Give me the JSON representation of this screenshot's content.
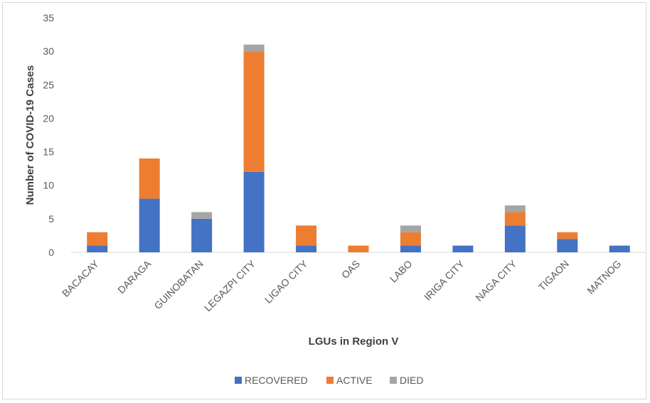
{
  "chart_data": {
    "type": "bar",
    "stacked": true,
    "categories": [
      "BACACAY",
      "DARAGA",
      "GUINOBATAN",
      "LEGAZPI CITY",
      "LIGAO CITY",
      "OAS",
      "LABO",
      "IRIGA CITY",
      "NAGA CITY",
      "TIGAON",
      "MATNOG"
    ],
    "series": [
      {
        "name": "RECOVERED",
        "color": "#4472c4",
        "values": [
          1,
          8,
          5,
          12,
          1,
          0,
          1,
          1,
          4,
          2,
          1
        ]
      },
      {
        "name": "ACTIVE",
        "color": "#ed7d31",
        "values": [
          2,
          6,
          0,
          18,
          3,
          1,
          2,
          0,
          2,
          1,
          0
        ]
      },
      {
        "name": "DIED",
        "color": "#a5a5a5",
        "values": [
          0,
          0,
          1,
          1,
          0,
          0,
          1,
          0,
          1,
          0,
          0
        ]
      }
    ],
    "title": "",
    "xlabel": "LGUs in Region V",
    "ylabel": "Number of COVID-19 Cases",
    "ylim": [
      0,
      35
    ],
    "yticks": [
      0,
      5,
      10,
      15,
      20,
      25,
      30,
      35
    ],
    "grid": false,
    "legend_position": "bottom"
  }
}
